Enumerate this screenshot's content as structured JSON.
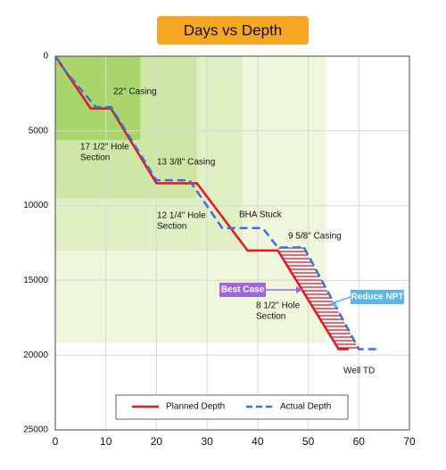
{
  "chart_data": {
    "type": "line",
    "title": "Days vs Depth",
    "xlim": [
      0,
      70
    ],
    "xticks": [
      0,
      10,
      20,
      30,
      40,
      50,
      60,
      70
    ],
    "ylim": [
      0,
      25000
    ],
    "yticks": [
      0,
      5000,
      10000,
      15000,
      20000,
      25000
    ],
    "y_inverted": true,
    "grid": true,
    "legend": "bottom",
    "series": [
      {
        "name": "Planned Depth",
        "color": "#e8141c",
        "dash": false,
        "x": [
          0,
          2,
          7,
          11,
          20,
          28,
          38,
          44,
          56,
          58
        ],
        "values": [
          0,
          1000,
          3500,
          3500,
          8500,
          8500,
          13000,
          13000,
          19600,
          19600
        ]
      },
      {
        "name": "Actual Depth",
        "color": "#3a6fe0",
        "dash": true,
        "x": [
          0,
          2,
          8,
          11,
          20,
          26.5,
          33,
          41,
          44,
          48,
          49,
          60,
          64
        ],
        "values": [
          0,
          1000,
          3400,
          3400,
          8300,
          8300,
          11500,
          11500,
          12800,
          12800,
          12700,
          19600,
          19600
        ]
      }
    ],
    "zones": [
      {
        "x": [
          0,
          53.5
        ],
        "y": [
          0,
          19200
        ],
        "color": "#eef6dc"
      },
      {
        "x": [
          0,
          37
        ],
        "y": [
          0,
          13000
        ],
        "color": "#e0efc4"
      },
      {
        "x": [
          0,
          28
        ],
        "y": [
          0,
          9500
        ],
        "color": "#cfe7a6"
      },
      {
        "x": [
          0,
          16.8
        ],
        "y": [
          0,
          5600
        ],
        "color": "#a9d66a"
      }
    ],
    "annotations": [
      {
        "lines": [
          "22\" Casing"
        ]
      },
      {
        "lines": [
          "17 1/2\" Hole",
          "Section"
        ]
      },
      {
        "lines": [
          "13 3/8\" Casing"
        ]
      },
      {
        "lines": [
          "12 1/4\" Hole",
          "Section"
        ]
      },
      {
        "lines": [
          "BHA Stuck"
        ]
      },
      {
        "lines": [
          "9 5/8\" Casing"
        ]
      },
      {
        "lines": [
          "8 1/2\" Hole",
          "Section"
        ]
      },
      {
        "lines": [
          "Well TD"
        ]
      }
    ],
    "callouts": [
      {
        "text": "Best Case",
        "color": "#a066e0"
      },
      {
        "text": "Reduce NPT",
        "color": "#5ab4ee"
      }
    ]
  }
}
